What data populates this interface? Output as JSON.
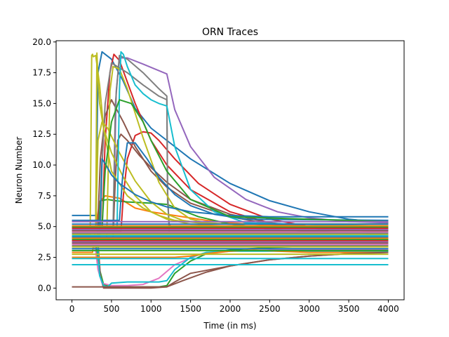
{
  "chart_data": {
    "type": "line",
    "title": "ORN Traces",
    "xlabel": "Time (in ms)",
    "ylabel": "Neuron Number",
    "xlim": [
      -200,
      4200
    ],
    "ylim": [
      -0.95,
      20.1
    ],
    "x_ticks": [
      0,
      500,
      1000,
      1500,
      2000,
      2500,
      3000,
      3500,
      4000
    ],
    "x_tick_labels": [
      "0",
      "500",
      "1000",
      "1500",
      "2000",
      "2500",
      "3000",
      "3500",
      "4000"
    ],
    "y_ticks": [
      0.0,
      2.5,
      5.0,
      7.5,
      10.0,
      12.5,
      15.0,
      17.5,
      20.0
    ],
    "y_tick_labels": [
      "0.0",
      "2.5",
      "5.0",
      "7.5",
      "10.0",
      "12.5",
      "15.0",
      "17.5",
      "20.0"
    ],
    "grid": false,
    "legend": "none",
    "series": [
      {
        "color": "#1f77b4",
        "x": [
          0,
          280,
          300,
          310,
          330,
          380,
          500,
          650,
          800,
          1000,
          1200,
          1500,
          2000,
          2500,
          3000,
          3500,
          4000
        ],
        "y": [
          5.9,
          5.9,
          5.9,
          9.0,
          17.5,
          19.2,
          18.6,
          16.8,
          14.6,
          13.0,
          12.0,
          10.5,
          8.5,
          7.1,
          6.2,
          5.6,
          5.3
        ]
      },
      {
        "color": "#ff7f0e",
        "x": [
          0,
          250,
          260,
          300,
          350,
          420,
          600,
          800,
          1000,
          1200,
          1400,
          1700,
          2000,
          2500,
          3000,
          3500,
          4000
        ],
        "y": [
          2.9,
          2.9,
          2.9,
          5.0,
          7.0,
          7.5,
          7.3,
          6.5,
          6.2,
          6.0,
          5.8,
          5.5,
          5.3,
          5.1,
          5.0,
          4.9,
          4.8
        ]
      },
      {
        "color": "#2ca02c",
        "x": [
          0,
          300,
          330,
          360,
          450,
          550,
          700,
          1000,
          1200,
          1400,
          1600,
          2000,
          2500,
          3000,
          3500,
          4000
        ],
        "y": [
          4.2,
          4.2,
          4.2,
          7.1,
          7.2,
          7.1,
          7.0,
          6.9,
          6.8,
          6.3,
          5.8,
          5.2,
          4.8,
          4.6,
          4.5,
          4.4
        ]
      },
      {
        "color": "#2ca02c",
        "x": [
          0,
          300,
          350,
          400,
          500,
          700,
          900,
          1100,
          1200,
          1300,
          1500,
          1700,
          2000,
          2500,
          3000,
          3500,
          4000
        ],
        "y": [
          3.5,
          3.5,
          1.5,
          0.3,
          0.1,
          0.1,
          0.1,
          0.1,
          0.2,
          1.2,
          2.2,
          2.8,
          3.1,
          3.3,
          3.4,
          3.4,
          3.4
        ]
      },
      {
        "color": "#d62728",
        "x": [
          0,
          350,
          380,
          420,
          480,
          530,
          600,
          800,
          1000,
          1200,
          1500,
          2000,
          2500,
          3000,
          3500,
          4000
        ],
        "y": [
          4.5,
          4.5,
          4.5,
          12.0,
          17.5,
          19.0,
          18.5,
          15.0,
          12.0,
          10.0,
          8.0,
          6.2,
          5.3,
          4.9,
          4.7,
          4.6
        ]
      },
      {
        "color": "#d62728",
        "x": [
          0,
          600,
          620,
          650,
          700,
          800,
          900,
          1000,
          1100,
          1300,
          1600,
          2000,
          2500,
          3000,
          3500,
          4000
        ],
        "y": [
          4.6,
          4.6,
          4.6,
          7.5,
          10.5,
          12.4,
          12.7,
          12.6,
          12.0,
          10.5,
          8.5,
          6.8,
          5.6,
          5.0,
          4.8,
          4.7
        ]
      },
      {
        "color": "#9467bd",
        "x": [
          0,
          500,
          520,
          560,
          600,
          700,
          900,
          1200,
          1300,
          1500,
          1800,
          2200,
          2600,
          3000,
          3500,
          4000
        ],
        "y": [
          4.0,
          4.0,
          4.0,
          16.0,
          18.7,
          18.7,
          18.2,
          17.4,
          14.5,
          11.5,
          9.0,
          7.2,
          6.2,
          5.7,
          5.4,
          5.3
        ]
      },
      {
        "color": "#8c564b",
        "x": [
          0,
          300,
          320,
          360,
          420,
          500,
          650,
          800,
          1000,
          1200,
          1500,
          2000,
          2500,
          3000,
          3500,
          4000
        ],
        "y": [
          4.0,
          4.0,
          4.0,
          10.5,
          14.0,
          15.3,
          13.5,
          11.5,
          9.5,
          8.2,
          6.9,
          5.8,
          5.2,
          4.9,
          4.7,
          4.6
        ]
      },
      {
        "color": "#8c564b",
        "x": [
          0,
          500,
          520,
          550,
          580,
          620,
          700,
          850,
          1000,
          1200,
          1500,
          2000,
          2500,
          3000,
          3500,
          4000
        ],
        "y": [
          4.3,
          4.3,
          4.3,
          9.0,
          12.0,
          12.5,
          12.0,
          10.8,
          9.8,
          8.6,
          7.2,
          6.0,
          5.3,
          5.0,
          4.8,
          4.7
        ]
      },
      {
        "color": "#8c564b",
        "x": [
          0,
          330,
          360,
          400,
          450,
          500,
          700,
          1000,
          1200,
          1300,
          1500,
          2000,
          2500,
          3000,
          3500,
          4000
        ],
        "y": [
          3.6,
          3.6,
          1.0,
          0.0,
          0.0,
          0.0,
          0.0,
          0.0,
          0.1,
          0.5,
          1.2,
          1.8,
          2.3,
          2.6,
          2.8,
          2.9
        ]
      },
      {
        "color": "#e377c2",
        "x": [
          0,
          250,
          270,
          300,
          330,
          380,
          500,
          700,
          900,
          1100,
          1300,
          1600,
          2000,
          2500,
          3000,
          3500,
          4000
        ],
        "y": [
          4.1,
          4.1,
          4.1,
          3.0,
          1.5,
          0.4,
          0.2,
          0.2,
          0.3,
          0.8,
          1.9,
          2.7,
          3.0,
          3.1,
          3.1,
          3.1,
          3.1
        ]
      },
      {
        "color": "#7f7f7f",
        "x": [
          0,
          500,
          520,
          550,
          600,
          700,
          900,
          1100,
          1200,
          1210,
          1230,
          1250,
          1500,
          2000,
          4000
        ],
        "y": [
          5.0,
          5.0,
          5.0,
          15.0,
          18.9,
          18.6,
          17.5,
          16.2,
          15.6,
          7.0,
          5.2,
          5.0,
          5.0,
          5.0,
          5.0
        ]
      },
      {
        "color": "#7f7f7f",
        "x": [
          0,
          340,
          360,
          380,
          420,
          500,
          700,
          900,
          1100,
          1200,
          1210,
          1230,
          1250,
          1500,
          4000
        ],
        "y": [
          4.5,
          4.5,
          4.5,
          10.0,
          15.0,
          18.3,
          17.5,
          16.5,
          15.6,
          15.3,
          8.0,
          4.5,
          4.5,
          4.5,
          4.5
        ]
      },
      {
        "color": "#bcbd22",
        "x": [
          0,
          220,
          230,
          250,
          260,
          270,
          300,
          350,
          400,
          500,
          700,
          900,
          1100,
          1300,
          1600,
          2000,
          4000
        ],
        "y": [
          4.4,
          4.4,
          4.4,
          18.9,
          19.0,
          18.8,
          18.9,
          16.5,
          13.0,
          9.5,
          7.5,
          6.5,
          5.9,
          5.5,
          5.3,
          5.2,
          5.2
        ]
      },
      {
        "color": "#bcbd22",
        "x": [
          0,
          290,
          300,
          315,
          330,
          350,
          400,
          500,
          650,
          800,
          1000,
          1200,
          1500,
          2000,
          4000
        ],
        "y": [
          4.6,
          4.6,
          4.6,
          19.1,
          17.0,
          15.0,
          13.0,
          11.0,
          9.0,
          7.5,
          6.2,
          5.6,
          5.2,
          5.0,
          5.0
        ]
      },
      {
        "color": "#bcbd22",
        "x": [
          0,
          420,
          440,
          480,
          520,
          600,
          700,
          900,
          1100,
          1300,
          1500,
          1700,
          2000,
          4000
        ],
        "y": [
          4.0,
          4.0,
          4.0,
          16.0,
          18.0,
          17.8,
          16.2,
          12.2,
          8.6,
          6.5,
          5.6,
          5.3,
          5.2,
          5.2
        ]
      },
      {
        "color": "#bcbd22",
        "x": [
          0,
          280,
          300,
          330,
          380,
          450,
          600,
          800,
          1000,
          1200,
          1400,
          1600,
          2000,
          4000
        ],
        "y": [
          4.7,
          4.7,
          4.7,
          12.0,
          13.5,
          13.0,
          11.0,
          8.7,
          7.0,
          6.0,
          5.5,
          5.3,
          5.2,
          5.2
        ]
      },
      {
        "color": "#17becf",
        "x": [
          0,
          550,
          570,
          600,
          620,
          650,
          700,
          800,
          900,
          1000,
          1100,
          1200,
          1300,
          1500,
          1800,
          2200,
          4000
        ],
        "y": [
          4.8,
          4.8,
          4.8,
          16.0,
          19.2,
          19.0,
          18.0,
          16.5,
          15.8,
          15.3,
          15.0,
          14.8,
          11.5,
          8.0,
          6.2,
          5.3,
          5.0
        ]
      },
      {
        "color": "#17becf",
        "x": [
          0,
          300,
          320,
          350,
          400,
          450,
          500,
          700,
          900,
          1100,
          1200,
          1300,
          1500,
          1700,
          2000,
          4000
        ],
        "y": [
          3.8,
          3.8,
          3.8,
          1.0,
          0.2,
          0.1,
          0.4,
          0.5,
          0.5,
          0.5,
          0.6,
          1.5,
          2.5,
          2.9,
          3.0,
          3.0
        ]
      },
      {
        "color": "#1f77b4",
        "x": [
          0,
          580,
          600,
          640,
          700,
          800,
          950,
          1100,
          1300,
          1500,
          1800,
          2200,
          4000
        ],
        "y": [
          5.5,
          5.5,
          5.5,
          9.0,
          11.8,
          11.8,
          10.5,
          9.0,
          7.6,
          6.7,
          6.0,
          5.6,
          5.5
        ]
      },
      {
        "color": "#1f77b4",
        "x": [
          0,
          330,
          350,
          380,
          430,
          500,
          600,
          800,
          1000,
          1200,
          1500,
          2000,
          2500,
          4000
        ],
        "y": [
          4.2,
          4.2,
          4.2,
          10.5,
          10.0,
          9.2,
          8.5,
          7.6,
          7.0,
          6.6,
          6.2,
          5.9,
          5.8,
          5.8
        ]
      },
      {
        "color": "#2ca02c",
        "x": [
          0,
          350,
          380,
          420,
          500,
          600,
          750,
          900,
          1000,
          1200,
          1500,
          2000,
          4000
        ],
        "y": [
          4.9,
          4.9,
          4.9,
          9.5,
          13.5,
          15.3,
          15.0,
          13.5,
          12.0,
          9.5,
          7.2,
          5.8,
          5.4
        ]
      },
      {
        "color": "#ff7f0e",
        "x": [
          0,
          1200,
          1300,
          1500,
          1700,
          2000,
          2300,
          2600,
          3000,
          4000
        ],
        "y": [
          2.5,
          2.5,
          2.5,
          2.6,
          2.8,
          3.0,
          3.1,
          3.0,
          2.9,
          2.9
        ]
      },
      {
        "color": "#8c564b",
        "x": [
          0,
          1200,
          1400,
          1700,
          2000,
          2500,
          3000,
          3500,
          4000
        ],
        "y": [
          0.1,
          0.1,
          0.6,
          1.3,
          1.8,
          2.3,
          2.6,
          2.8,
          2.9
        ]
      },
      {
        "color": "#9467bd",
        "x": [
          0,
          4000
        ],
        "y": [
          5.4,
          5.4
        ]
      },
      {
        "color": "#1f77b4",
        "x": [
          0,
          4000
        ],
        "y": [
          5.2,
          5.2
        ]
      },
      {
        "color": "#ff7f0e",
        "x": [
          0,
          4000
        ],
        "y": [
          5.05,
          5.05
        ]
      },
      {
        "color": "#2ca02c",
        "x": [
          0,
          4000
        ],
        "y": [
          4.95,
          4.95
        ]
      },
      {
        "color": "#d62728",
        "x": [
          0,
          4000
        ],
        "y": [
          4.85,
          4.85
        ]
      },
      {
        "color": "#9467bd",
        "x": [
          0,
          4000
        ],
        "y": [
          4.75,
          4.75
        ]
      },
      {
        "color": "#8c564b",
        "x": [
          0,
          4000
        ],
        "y": [
          4.65,
          4.65
        ]
      },
      {
        "color": "#e377c2",
        "x": [
          0,
          4000
        ],
        "y": [
          4.55,
          4.55
        ]
      },
      {
        "color": "#7f7f7f",
        "x": [
          0,
          4000
        ],
        "y": [
          4.45,
          4.45
        ]
      },
      {
        "color": "#bcbd22",
        "x": [
          0,
          4000
        ],
        "y": [
          4.35,
          4.35
        ]
      },
      {
        "color": "#17becf",
        "x": [
          0,
          4000
        ],
        "y": [
          4.25,
          4.25
        ]
      },
      {
        "color": "#1f77b4",
        "x": [
          0,
          4000
        ],
        "y": [
          4.15,
          4.15
        ]
      },
      {
        "color": "#ff7f0e",
        "x": [
          0,
          4000
        ],
        "y": [
          4.05,
          4.05
        ]
      },
      {
        "color": "#2ca02c",
        "x": [
          0,
          4000
        ],
        "y": [
          3.95,
          3.95
        ]
      },
      {
        "color": "#d62728",
        "x": [
          0,
          4000
        ],
        "y": [
          3.85,
          3.85
        ]
      },
      {
        "color": "#9467bd",
        "x": [
          0,
          4000
        ],
        "y": [
          3.75,
          3.75
        ]
      },
      {
        "color": "#8c564b",
        "x": [
          0,
          4000
        ],
        "y": [
          3.65,
          3.65
        ]
      },
      {
        "color": "#e377c2",
        "x": [
          0,
          4000
        ],
        "y": [
          3.55,
          3.55
        ]
      },
      {
        "color": "#7f7f7f",
        "x": [
          0,
          4000
        ],
        "y": [
          3.45,
          3.45
        ]
      },
      {
        "color": "#bcbd22",
        "x": [
          0,
          4000
        ],
        "y": [
          3.35,
          3.35
        ]
      },
      {
        "color": "#1f77b4",
        "x": [
          0,
          4000
        ],
        "y": [
          3.2,
          3.2
        ]
      },
      {
        "color": "#2ca02c",
        "x": [
          0,
          4000
        ],
        "y": [
          3.05,
          3.05
        ]
      },
      {
        "color": "#bcbd22",
        "x": [
          0,
          4000
        ],
        "y": [
          2.75,
          2.75
        ]
      },
      {
        "color": "#17becf",
        "x": [
          0,
          4000
        ],
        "y": [
          2.4,
          2.4
        ]
      },
      {
        "color": "#17becf",
        "x": [
          0,
          4000
        ],
        "y": [
          1.9,
          1.9
        ]
      }
    ]
  }
}
